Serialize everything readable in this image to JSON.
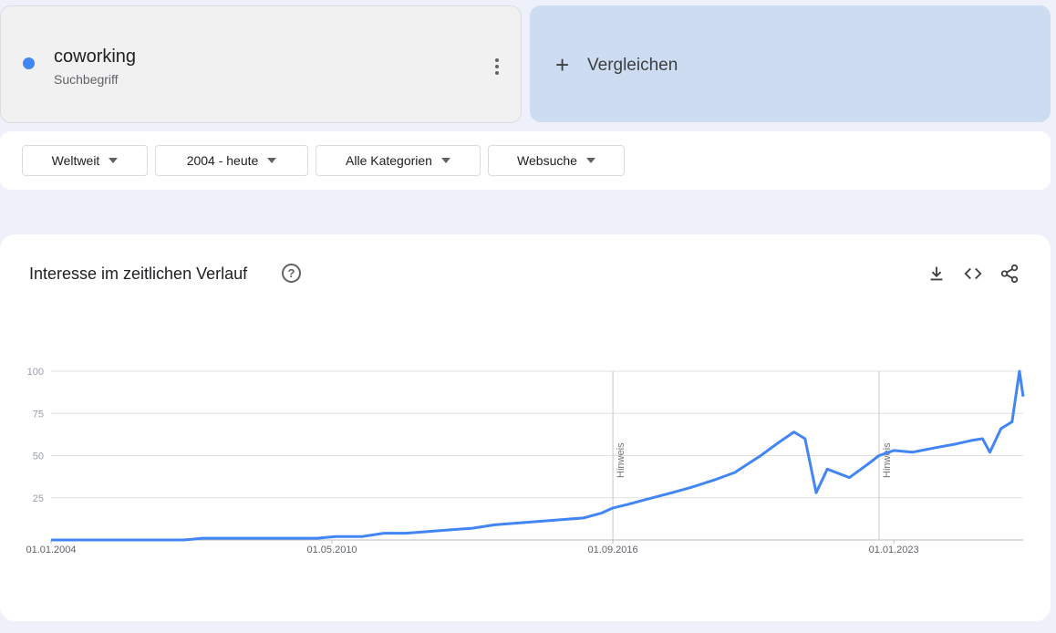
{
  "search_term": {
    "name": "coworking",
    "type_label": "Suchbegriff",
    "color": "#4285f4",
    "menu_icon": "more-vert-icon"
  },
  "compare": {
    "label": "Vergleichen",
    "icon": "plus-icon"
  },
  "filters": [
    {
      "label": "Weltweit"
    },
    {
      "label": "2004 - heute"
    },
    {
      "label": "Alle Kategorien"
    },
    {
      "label": "Websuche"
    }
  ],
  "chart_card": {
    "title": "Interesse im zeitlichen Verlauf",
    "help_icon": "help-circle-icon",
    "tools": [
      "download-icon",
      "embed-code-icon",
      "share-icon"
    ]
  },
  "chart_data": {
    "type": "line",
    "line_color": "#4285f4",
    "grid": true,
    "ylim": [
      0,
      100
    ],
    "yticks": [
      "100",
      "75",
      "50",
      "25"
    ],
    "xtick_labels": [
      "01.01.2004",
      "01.05.2010",
      "01.09.2016",
      "01.01.2023"
    ],
    "annotations": [
      "Hinweis",
      "Hinweis"
    ],
    "series": [
      {
        "points": [
          [
            "2004-01",
            0
          ],
          [
            "2005-01",
            0
          ],
          [
            "2006-01",
            0
          ],
          [
            "2007-01",
            0
          ],
          [
            "2007-06",
            1
          ],
          [
            "2008-01",
            1
          ],
          [
            "2009-01",
            1
          ],
          [
            "2010-01",
            1
          ],
          [
            "2010-06",
            2
          ],
          [
            "2011-01",
            2
          ],
          [
            "2011-07",
            4
          ],
          [
            "2012-01",
            4
          ],
          [
            "2012-07",
            5
          ],
          [
            "2013-01",
            6
          ],
          [
            "2013-07",
            7
          ],
          [
            "2014-01",
            9
          ],
          [
            "2014-07",
            10
          ],
          [
            "2015-01",
            11
          ],
          [
            "2015-07",
            12
          ],
          [
            "2016-01",
            13
          ],
          [
            "2016-06",
            16
          ],
          [
            "2016-09",
            19
          ],
          [
            "2017-01",
            21
          ],
          [
            "2017-06",
            24
          ],
          [
            "2018-01",
            28
          ],
          [
            "2018-06",
            31
          ],
          [
            "2019-01",
            36
          ],
          [
            "2019-06",
            40
          ],
          [
            "2020-01",
            50
          ],
          [
            "2020-06",
            58
          ],
          [
            "2020-10",
            64
          ],
          [
            "2021-01",
            60
          ],
          [
            "2021-04",
            28
          ],
          [
            "2021-07",
            42
          ],
          [
            "2022-01",
            37
          ],
          [
            "2022-06",
            45
          ],
          [
            "2022-09",
            50
          ],
          [
            "2023-01",
            53
          ],
          [
            "2023-06",
            52
          ],
          [
            "2024-01",
            55
          ],
          [
            "2024-06",
            57
          ],
          [
            "2024-10",
            59
          ],
          [
            "2025-01",
            60
          ],
          [
            "2025-03",
            52
          ],
          [
            "2025-06",
            66
          ],
          [
            "2025-09",
            70
          ],
          [
            "2025-11",
            100
          ],
          [
            "2025-12",
            85
          ]
        ]
      }
    ]
  }
}
